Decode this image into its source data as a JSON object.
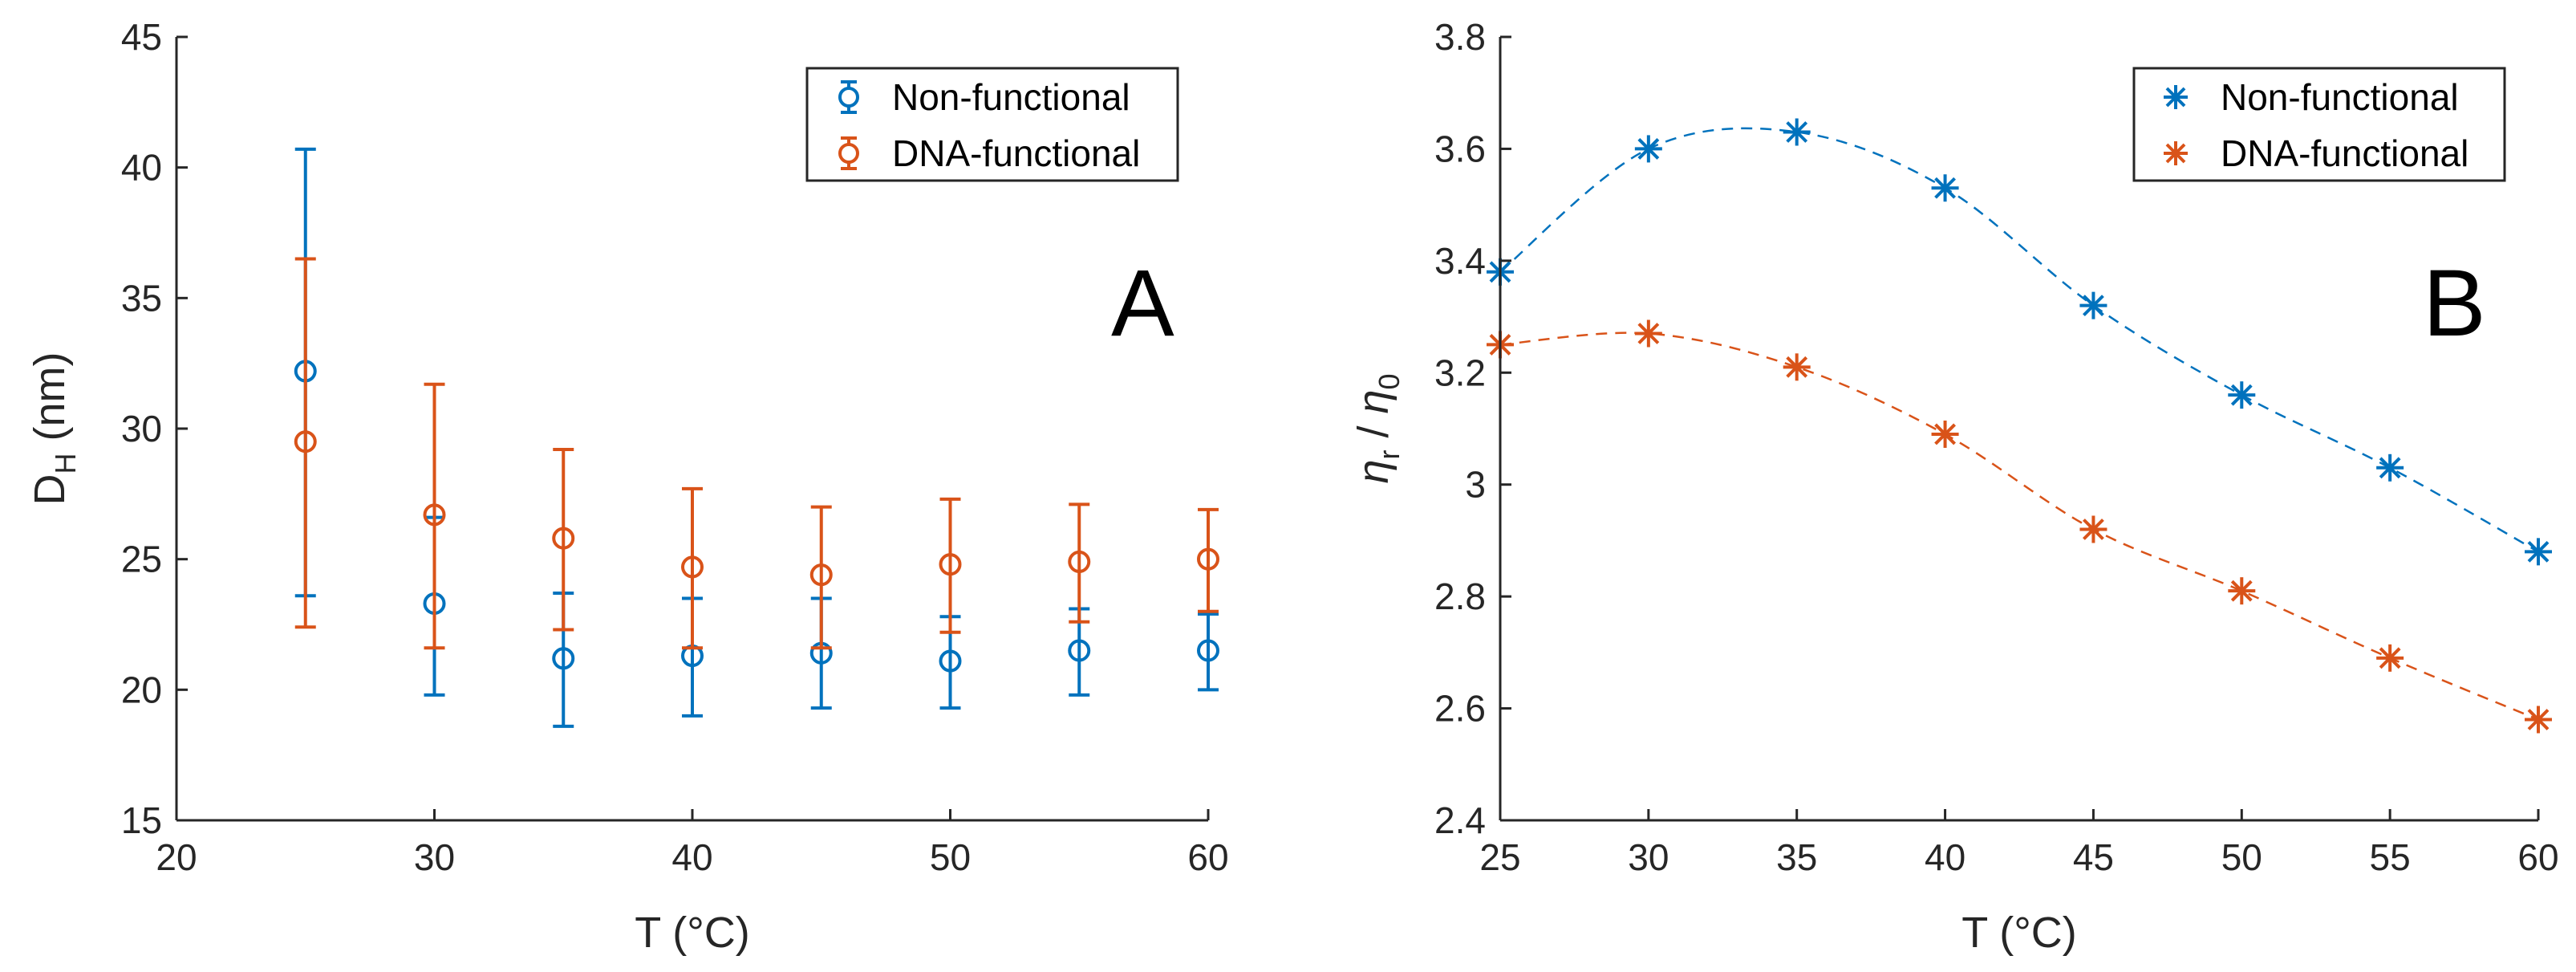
{
  "colors": {
    "blue": "#0072BD",
    "orange": "#D95319"
  },
  "chart_data": [
    {
      "type": "scatter",
      "panel_label": "A",
      "xlabel": "T (°C)",
      "ylabel_main": "D",
      "ylabel_sub": "H",
      "ylabel_suffix": " (nm)",
      "xlim": [
        20,
        60
      ],
      "ylim": [
        15,
        45
      ],
      "xticks": [
        20,
        30,
        40,
        50,
        60
      ],
      "yticks": [
        15,
        20,
        25,
        30,
        35,
        40,
        45
      ],
      "legend_position": "top-right",
      "series": [
        {
          "name": "Non-functional",
          "color": "#0072BD",
          "marker": "circle",
          "x": [
            25,
            30,
            35,
            40,
            45,
            50,
            55,
            60
          ],
          "y": [
            32.2,
            23.3,
            21.2,
            21.3,
            21.4,
            21.1,
            21.5,
            21.5
          ],
          "err_low": [
            23.6,
            19.8,
            18.6,
            19.0,
            19.3,
            19.3,
            19.8,
            20.0
          ],
          "err_high": [
            40.7,
            26.6,
            23.7,
            23.5,
            23.5,
            22.8,
            23.1,
            22.9
          ]
        },
        {
          "name": "DNA-functional",
          "color": "#D95319",
          "marker": "circle",
          "x": [
            25,
            30,
            35,
            40,
            45,
            50,
            55,
            60
          ],
          "y": [
            29.5,
            26.7,
            25.8,
            24.7,
            24.4,
            24.8,
            24.9,
            25.0
          ],
          "err_low": [
            22.4,
            21.6,
            22.3,
            21.6,
            21.6,
            22.2,
            22.6,
            23.0
          ],
          "err_high": [
            36.5,
            31.7,
            29.2,
            27.7,
            27.0,
            27.3,
            27.1,
            26.9
          ]
        }
      ]
    },
    {
      "type": "line",
      "panel_label": "B",
      "xlabel": "T (°C)",
      "ylabel_a": "η",
      "ylabel_a_sub": "r",
      "ylabel_sep": " / ",
      "ylabel_b": "η",
      "ylabel_b_sub": "0",
      "xlim": [
        25,
        60
      ],
      "ylim": [
        2.4,
        3.8
      ],
      "xticks": [
        25,
        30,
        35,
        40,
        45,
        50,
        55,
        60
      ],
      "yticks": [
        2.4,
        2.6,
        2.8,
        3,
        3.2,
        3.4,
        3.6,
        3.8
      ],
      "ytick_labels": [
        "2.4",
        "2.6",
        "2.8",
        "3",
        "3.2",
        "3.4",
        "3.6",
        "3.8"
      ],
      "legend_position": "top-right",
      "series": [
        {
          "name": "Non-functional",
          "color": "#0072BD",
          "marker": "asterisk",
          "x": [
            25,
            30,
            35,
            40,
            45,
            50,
            55,
            60
          ],
          "y": [
            3.38,
            3.6,
            3.63,
            3.53,
            3.32,
            3.16,
            3.03,
            2.88
          ]
        },
        {
          "name": "DNA-functional",
          "color": "#D95319",
          "marker": "asterisk",
          "x": [
            25,
            30,
            35,
            40,
            45,
            50,
            55,
            60
          ],
          "y": [
            3.25,
            3.27,
            3.21,
            3.09,
            2.92,
            2.81,
            2.69,
            2.58
          ]
        }
      ]
    }
  ]
}
